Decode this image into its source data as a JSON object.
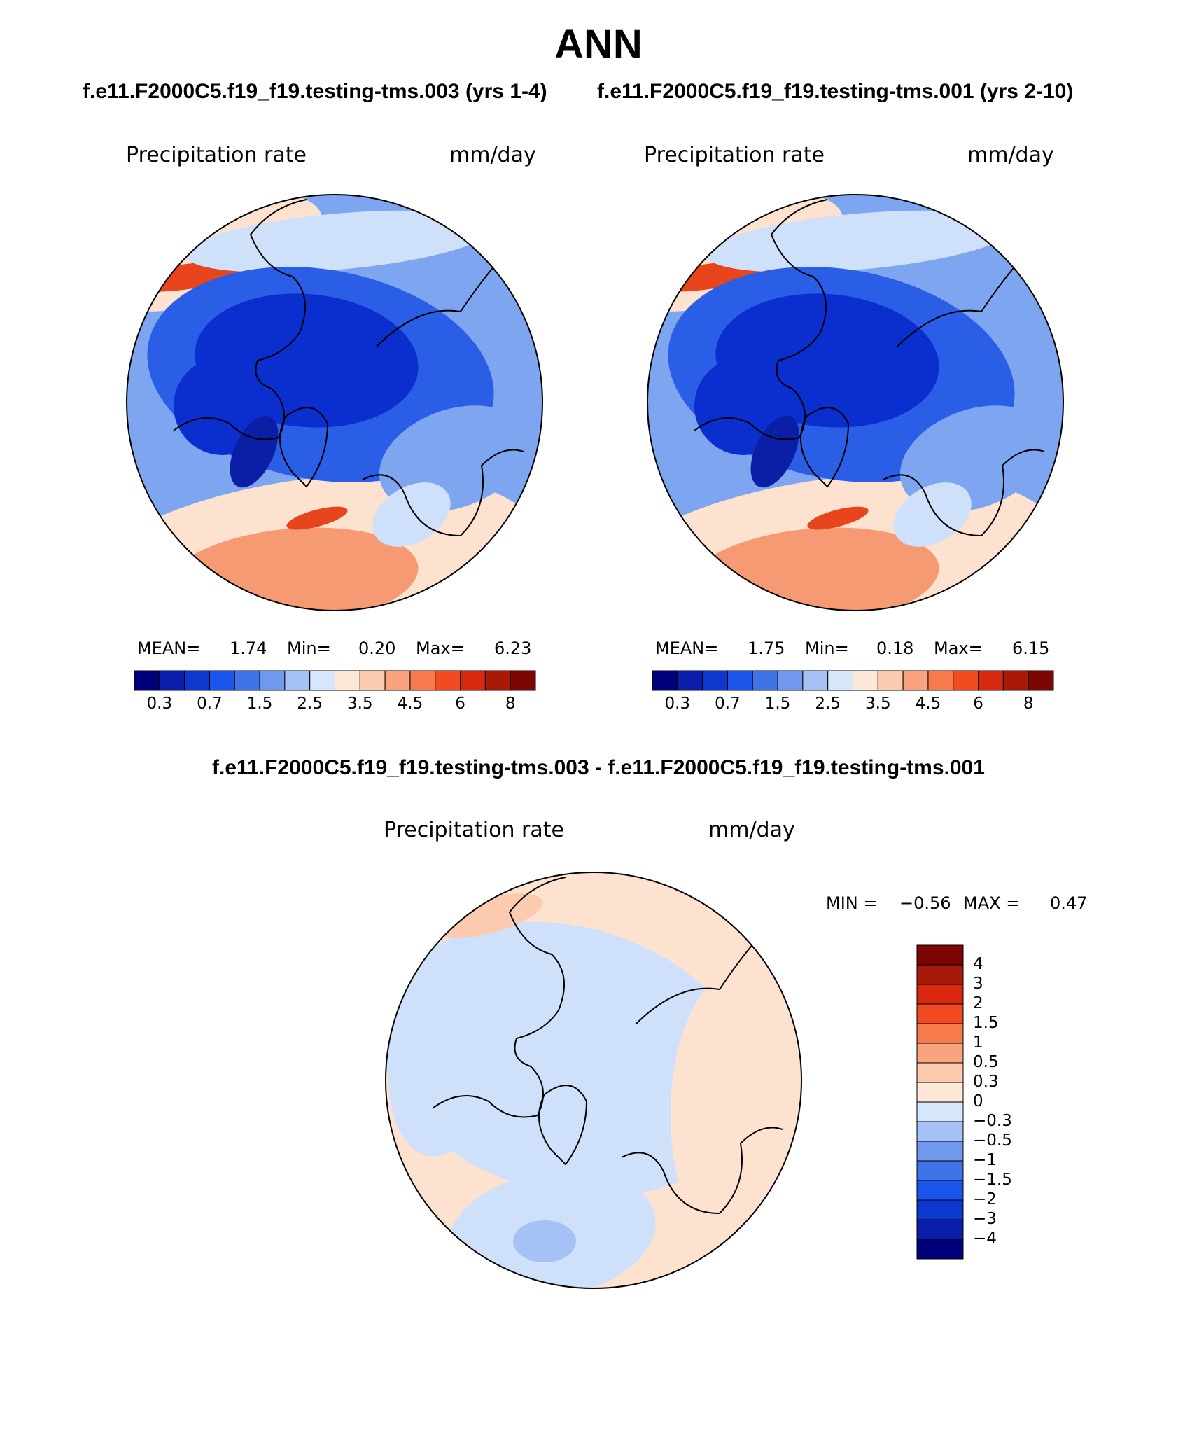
{
  "header": {
    "title": "ANN",
    "subtitle_left": "f.e11.F2000C5.f19_f19.testing-tms.003 (yrs 1-4)",
    "subtitle_right": "f.e11.F2000C5.f19_f19.testing-tms.001 (yrs 2-10)",
    "diff_title": "f.e11.F2000C5.f19_f19.testing-tms.003 - f.e11.F2000C5.f19_f19.testing-tms.001"
  },
  "colors": {
    "abs_scale": [
      "#00007a",
      "#0a1eab",
      "#0d38d0",
      "#1c55ec",
      "#3f73e8",
      "#7099ee",
      "#a6c1f5",
      "#d6e6fb",
      "#fde8d8",
      "#fccaae",
      "#f9a47e",
      "#f77a4c",
      "#f24b22",
      "#d9280e",
      "#a81a07",
      "#7d0605"
    ],
    "diff_scale": [
      "#00007a",
      "#0a1eab",
      "#0d38d0",
      "#1c55ec",
      "#3f73e8",
      "#7099ee",
      "#a6c1f5",
      "#d6e6fb",
      "#fde8d8",
      "#fccaae",
      "#f9a47e",
      "#f77a4c",
      "#f24b22",
      "#d9280e",
      "#a81a07",
      "#7d0605"
    ],
    "map_deep": "#0b2fcf",
    "map_mid": "#2b5ee6",
    "map_light": "#7ea5f0",
    "map_pale": "#cfe0fa",
    "map_warm": "#fde2d0",
    "map_orange": "#f59a72",
    "map_red": "#e8451c"
  },
  "chart_data": [
    {
      "type": "heatmap",
      "projection": "north polar stereographic",
      "case": "f.e11.F2000C5.f19_f19.testing-tms.003 (yrs 1-4)",
      "variable": "Precipitation rate",
      "units": "mm/day",
      "stats": {
        "mean_label": "MEAN=",
        "mean": "1.74",
        "min_label": "Min=",
        "min": "0.20",
        "max_label": "Max=",
        "max": "6.23"
      },
      "colorbar_ticks": [
        "0.3",
        "0.7",
        "1.5",
        "2.5",
        "3.5",
        "4.5",
        "6",
        "8"
      ]
    },
    {
      "type": "heatmap",
      "projection": "north polar stereographic",
      "case": "f.e11.F2000C5.f19_f19.testing-tms.001 (yrs 2-10)",
      "variable": "Precipitation rate",
      "units": "mm/day",
      "stats": {
        "mean_label": "MEAN=",
        "mean": "1.75",
        "min_label": "Min=",
        "min": "0.18",
        "max_label": "Max=",
        "max": "6.15"
      },
      "colorbar_ticks": [
        "0.3",
        "0.7",
        "1.5",
        "2.5",
        "3.5",
        "4.5",
        "6",
        "8"
      ]
    },
    {
      "type": "heatmap",
      "projection": "north polar stereographic",
      "case": "difference",
      "variable": "Precipitation rate",
      "units": "mm/day",
      "stats": {
        "min_label": "MIN =",
        "min": "−0.56",
        "max_label": "MAX =",
        "max": "0.47"
      },
      "colorbar_ticks": [
        "4",
        "3",
        "2",
        "1.5",
        "1",
        "0.5",
        "0.3",
        "0",
        "−0.3",
        "−0.5",
        "−1",
        "−1.5",
        "−2",
        "−3",
        "−4"
      ]
    }
  ]
}
